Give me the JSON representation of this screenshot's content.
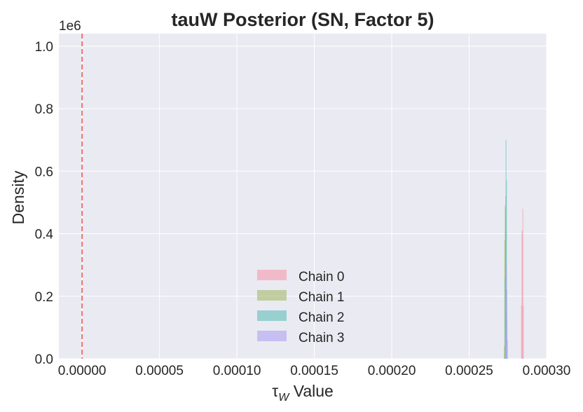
{
  "chart_data": {
    "type": "histogram",
    "title": "tauW Posterior (SN, Factor 5)",
    "xlabel_symbol": "τ",
    "xlabel_subscript": "W",
    "xlabel_suffix": " Value",
    "ylabel": "Density",
    "y_offset_label": "1e6",
    "xlim": [
      -1.5e-05,
      0.0003
    ],
    "ylim": [
      0,
      1040000
    ],
    "x_ticks": [
      0,
      5e-05,
      0.0001,
      0.00015,
      0.0002,
      0.00025,
      0.0003
    ],
    "x_tick_labels": [
      "0.00000",
      "0.00005",
      "0.00010",
      "0.00015",
      "0.00020",
      "0.00025",
      "0.00030"
    ],
    "y_ticks": [
      0,
      200000,
      400000,
      600000,
      800000,
      1000000
    ],
    "y_tick_labels": [
      "0.0",
      "0.2",
      "0.4",
      "0.6",
      "0.8",
      "1.0"
    ],
    "reference_line": {
      "x": 0,
      "color": "#f07070",
      "style": "dashed"
    },
    "bin_width": 3e-07,
    "series": [
      {
        "name": "Chain 0",
        "color": "#f4a0b0",
        "bins": [
          {
            "x": 0.0002838,
            "density": 170000
          },
          {
            "x": 0.0002841,
            "density": 410000
          },
          {
            "x": 0.0002844,
            "density": 400000
          },
          {
            "x": 0.0002847,
            "density": 480000
          },
          {
            "x": 0.000285,
            "density": 170000
          }
        ]
      },
      {
        "name": "Chain 1",
        "color": "#a9bd73",
        "bins": [
          {
            "x": 0.0002727,
            "density": 40000
          },
          {
            "x": 0.000273,
            "density": 380000
          },
          {
            "x": 0.0002733,
            "density": 490000
          },
          {
            "x": 0.0002736,
            "density": 520000
          },
          {
            "x": 0.0002739,
            "density": 410000
          },
          {
            "x": 0.0002742,
            "density": 140000
          }
        ]
      },
      {
        "name": "Chain 2",
        "color": "#6cc1bd",
        "bins": [
          {
            "x": 0.0002732,
            "density": 260000
          },
          {
            "x": 0.0002735,
            "density": 480000
          },
          {
            "x": 0.0002738,
            "density": 700000
          },
          {
            "x": 0.0002741,
            "density": 570000
          },
          {
            "x": 0.0002744,
            "density": 120000
          }
        ]
      },
      {
        "name": "Chain 3",
        "color": "#b3a8f0",
        "bins": [
          {
            "x": 0.0002738,
            "density": 80000
          },
          {
            "x": 0.0002741,
            "density": 300000
          },
          {
            "x": 0.0002744,
            "density": 220000
          },
          {
            "x": 0.0002747,
            "density": 60000
          }
        ]
      }
    ],
    "legend_position": "lower-center"
  }
}
